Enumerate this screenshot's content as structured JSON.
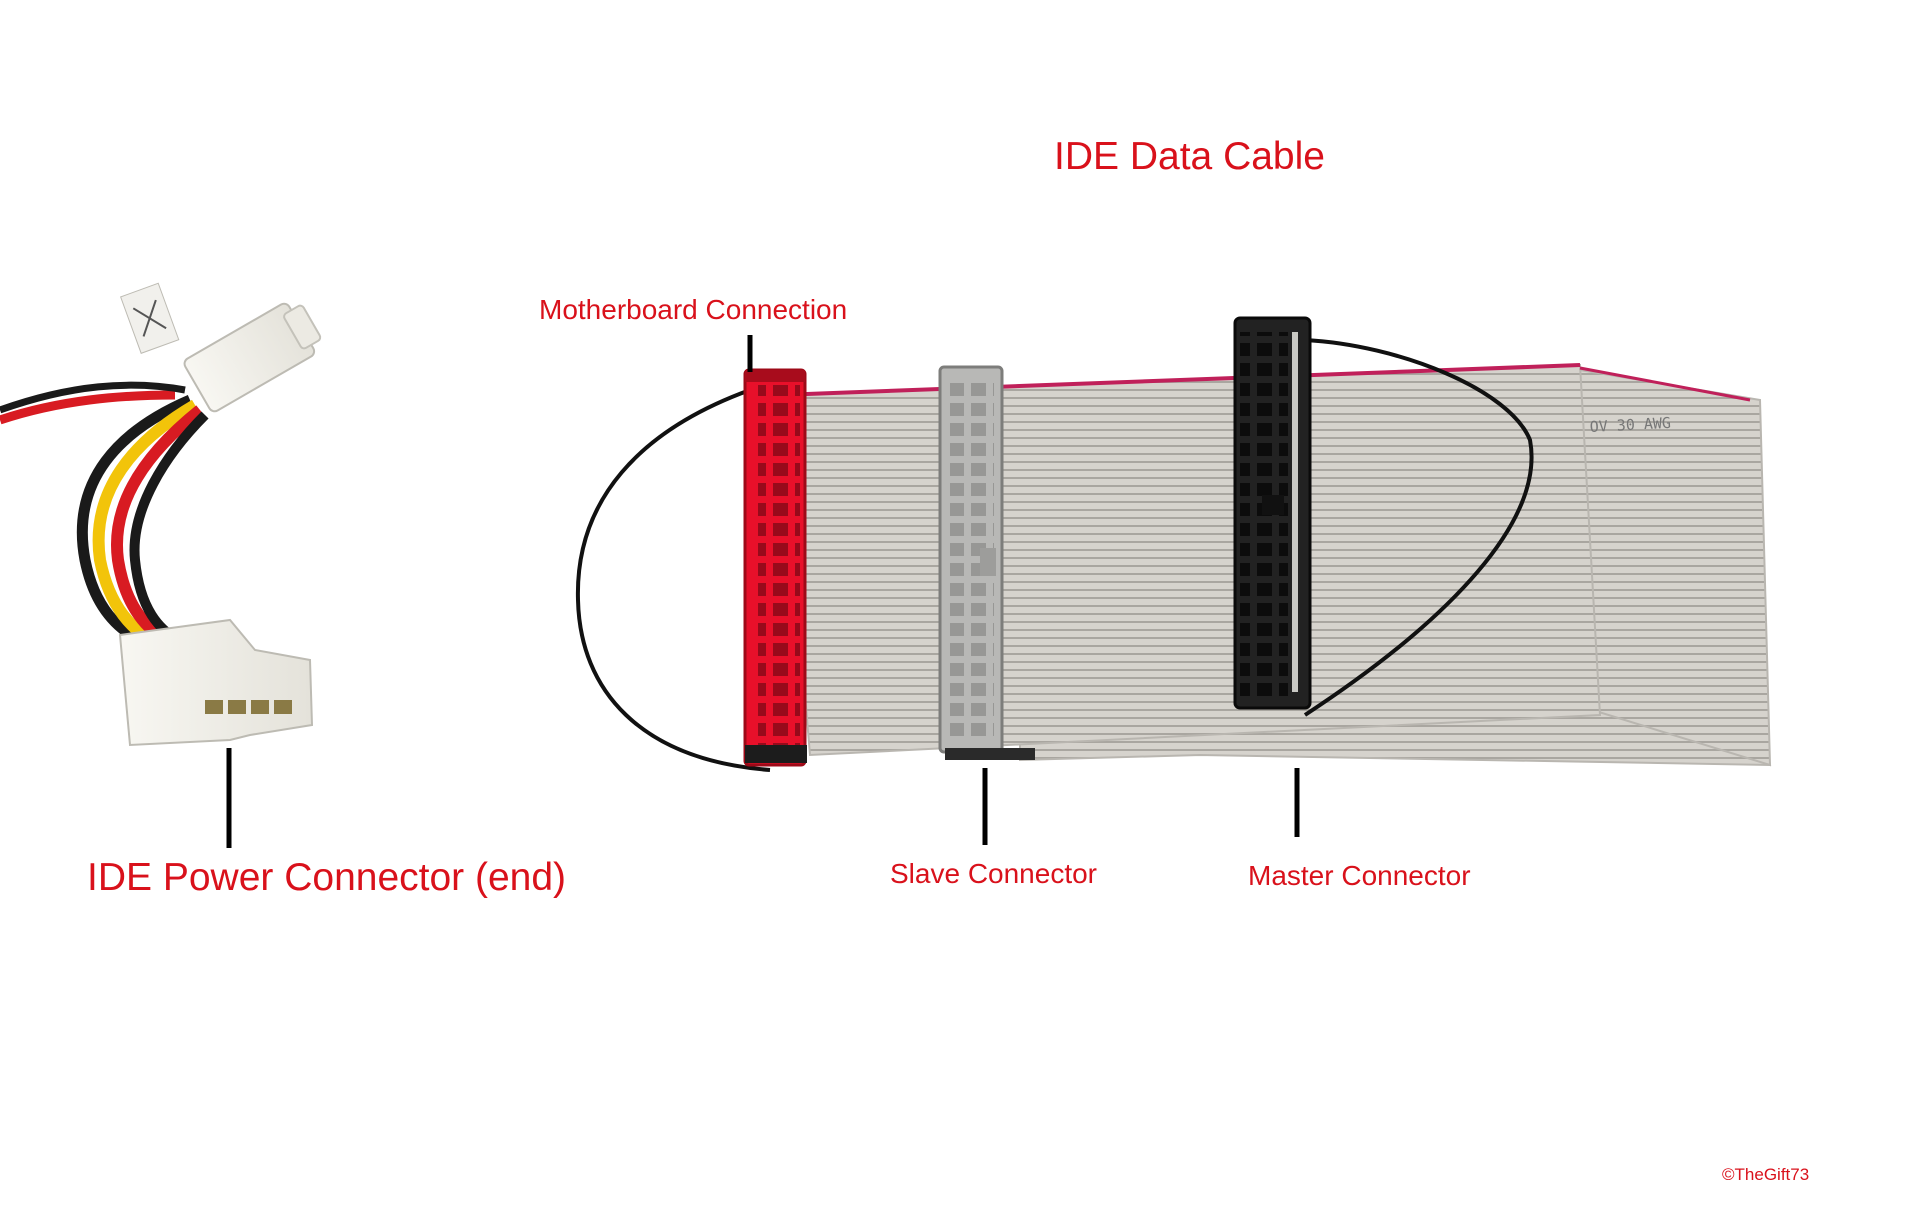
{
  "labels": {
    "title": "IDE Data Cable",
    "motherboard": "Motherboard Connection",
    "power": "IDE Power Connector (end)",
    "slave": "Slave Connector",
    "master": "Master Connector"
  },
  "credit": "©TheGift73",
  "colors": {
    "label_text": "#d9111b",
    "ribbon": "#d3d0ca",
    "ribbon_edge": "#c0205a",
    "motherboard_connector": "#e8102a",
    "slave_connector": "#b8b8b6",
    "master_connector": "#222222",
    "molex_plug": "#f4f3ee",
    "wire_red": "#d81b22",
    "wire_yellow": "#f2c40a",
    "wire_black": "#1a1a1a"
  }
}
